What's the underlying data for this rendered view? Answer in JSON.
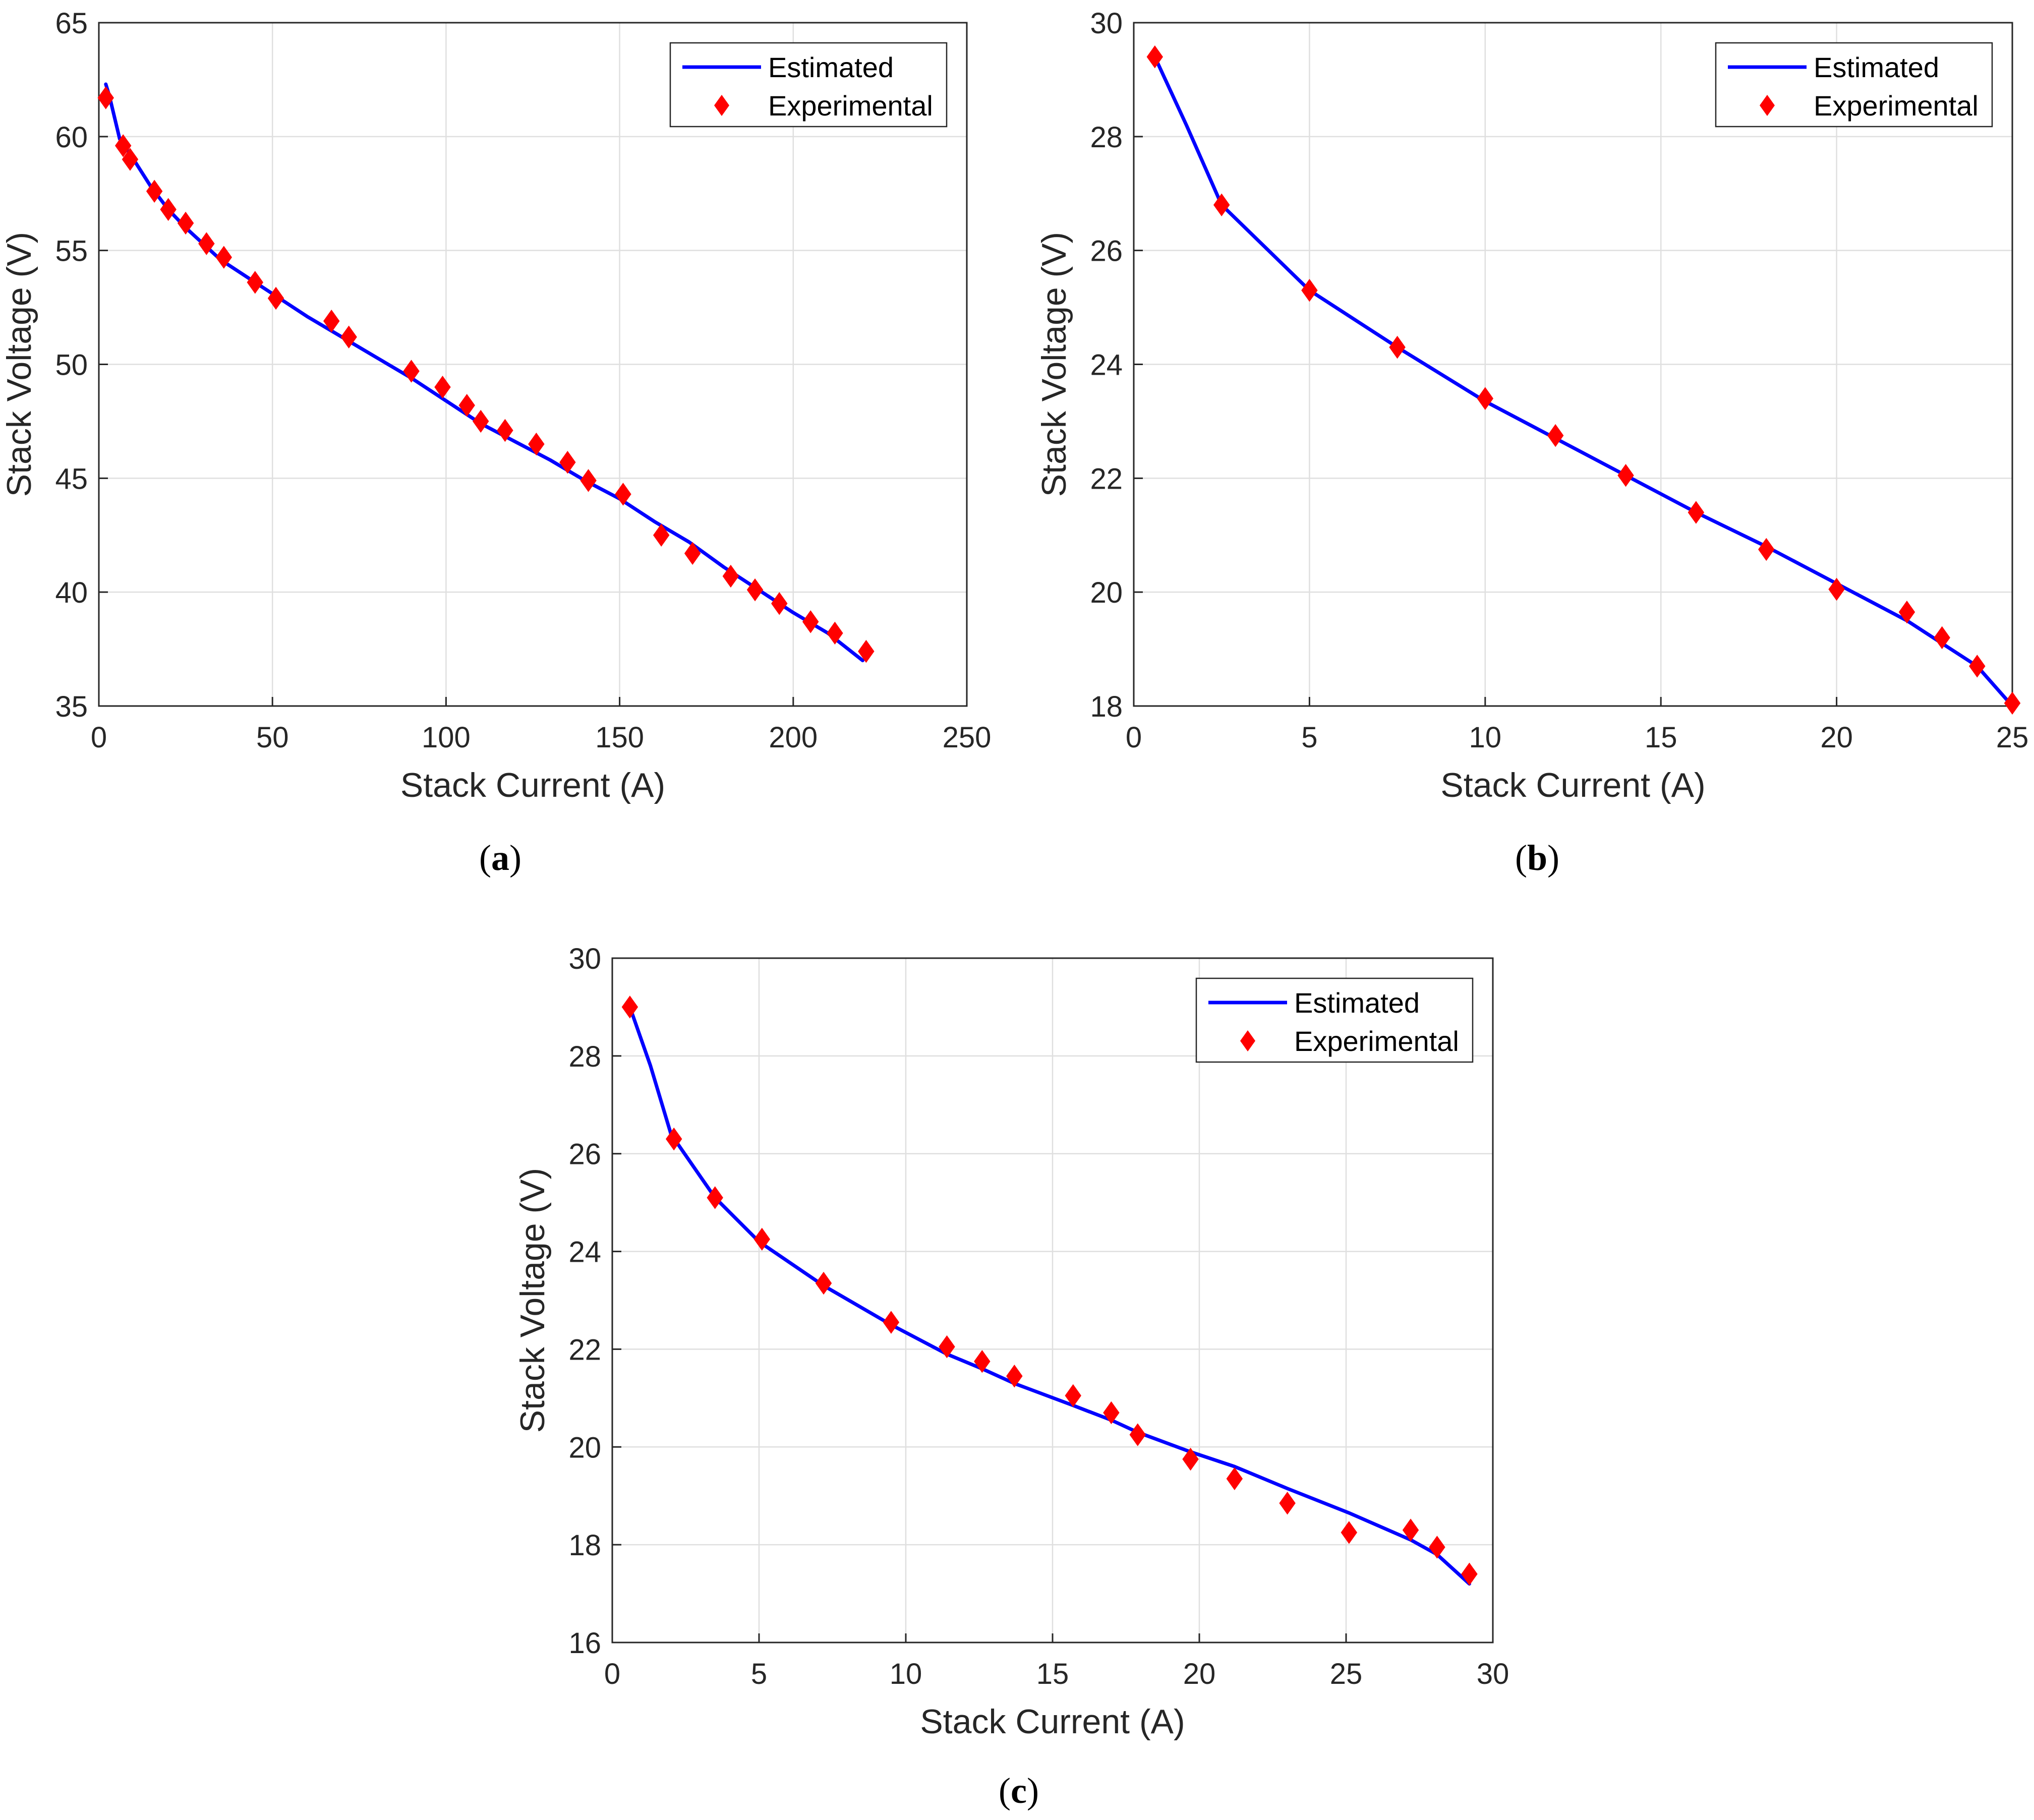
{
  "colors": {
    "estimated": "#0000ff",
    "experimental": "#ff0000",
    "grid": "#dfdfdf",
    "axis": "#262626"
  },
  "chart_data": [
    {
      "id": "a",
      "caption": "a",
      "type": "line",
      "xlabel": "Stack Current (A)",
      "ylabel": "Stack Voltage (V)",
      "xlim": [
        0,
        250
      ],
      "ylim": [
        35,
        65
      ],
      "xticks": [
        0,
        50,
        100,
        150,
        200,
        250
      ],
      "yticks": [
        35,
        40,
        45,
        50,
        55,
        60,
        65
      ],
      "grid": true,
      "legend_position": "top-right",
      "series": [
        {
          "name": "Estimated",
          "style": "line",
          "x": [
            2,
            3,
            6,
            10,
            15,
            20,
            25,
            30,
            35,
            45,
            52,
            60,
            70,
            80,
            90,
            100,
            110,
            120,
            130,
            140,
            150,
            160,
            170,
            180,
            190,
            200,
            210,
            220
          ],
          "y": [
            62.3,
            61.8,
            59.9,
            59.0,
            57.8,
            56.8,
            56.0,
            55.3,
            54.6,
            53.6,
            52.9,
            52.1,
            51.2,
            50.3,
            49.4,
            48.4,
            47.4,
            46.6,
            45.8,
            44.9,
            44.1,
            43.1,
            42.2,
            41.1,
            40.1,
            39.1,
            38.2,
            37.0
          ]
        },
        {
          "name": "Experimental",
          "style": "marker",
          "x": [
            2,
            7,
            9,
            16,
            20,
            25,
            31,
            36,
            45,
            51,
            67,
            72,
            90,
            99,
            106,
            110,
            117,
            126,
            135,
            141,
            151,
            162,
            171,
            182,
            189,
            196,
            205,
            212,
            221
          ],
          "y": [
            61.7,
            59.6,
            59.0,
            57.6,
            56.8,
            56.2,
            55.3,
            54.7,
            53.6,
            52.9,
            51.9,
            51.2,
            49.7,
            49.0,
            48.2,
            47.5,
            47.1,
            46.5,
            45.7,
            44.9,
            44.3,
            42.5,
            41.7,
            40.7,
            40.1,
            39.5,
            38.7,
            38.2,
            37.4
          ]
        }
      ]
    },
    {
      "id": "b",
      "caption": "b",
      "type": "line",
      "xlabel": "Stack Current (A)",
      "ylabel": "Stack Voltage (V)",
      "xlim": [
        0,
        25
      ],
      "ylim": [
        18,
        30
      ],
      "xticks": [
        0,
        5,
        10,
        15,
        20,
        25
      ],
      "yticks": [
        18,
        20,
        22,
        24,
        26,
        28,
        30
      ],
      "grid": true,
      "legend_position": "top-right",
      "series": [
        {
          "name": "Estimated",
          "style": "line",
          "x": [
            0.6,
            1.5,
            2.5,
            5,
            7.5,
            10,
            12,
            14,
            16,
            18,
            20,
            22,
            23,
            24,
            25
          ],
          "y": [
            29.4,
            28.2,
            26.8,
            25.3,
            24.3,
            23.35,
            22.7,
            22.05,
            21.4,
            20.8,
            20.15,
            19.5,
            19.1,
            18.7,
            18.0
          ]
        },
        {
          "name": "Experimental",
          "style": "marker",
          "x": [
            0.6,
            2.5,
            5,
            7.5,
            10,
            12,
            14,
            16,
            18,
            20,
            22,
            23,
            24,
            25
          ],
          "y": [
            29.4,
            26.8,
            25.3,
            24.3,
            23.4,
            22.75,
            22.05,
            21.4,
            20.75,
            20.05,
            19.65,
            19.2,
            18.7,
            18.05
          ]
        }
      ]
    },
    {
      "id": "c",
      "caption": "c",
      "type": "line",
      "xlabel": "Stack Current (A)",
      "ylabel": "Stack Voltage (V)",
      "xlim": [
        0,
        30
      ],
      "ylim": [
        16,
        30
      ],
      "xticks": [
        0,
        5,
        10,
        15,
        20,
        25,
        30
      ],
      "yticks": [
        16,
        18,
        20,
        22,
        24,
        26,
        28,
        30
      ],
      "grid": true,
      "legend_position": "top-right",
      "series": [
        {
          "name": "Estimated",
          "style": "line",
          "x": [
            0.6,
            1.3,
            2.0,
            3.5,
            5.0,
            7.2,
            9.5,
            11.4,
            12.6,
            13.7,
            15.7,
            17.0,
            17.9,
            19.7,
            21.2,
            23.0,
            25.1,
            27.2,
            28.1,
            29.2
          ],
          "y": [
            29.0,
            27.8,
            26.4,
            25.1,
            24.2,
            23.3,
            22.5,
            21.9,
            21.6,
            21.3,
            20.85,
            20.55,
            20.3,
            19.9,
            19.6,
            19.15,
            18.65,
            18.1,
            17.8,
            17.2
          ]
        },
        {
          "name": "Experimental",
          "style": "marker",
          "x": [
            0.6,
            2.1,
            3.5,
            5.1,
            7.2,
            9.5,
            11.4,
            12.6,
            13.7,
            15.7,
            17.0,
            17.9,
            19.7,
            21.2,
            23.0,
            25.1,
            27.2,
            28.1,
            29.2
          ],
          "y": [
            29.0,
            26.3,
            25.1,
            24.25,
            23.35,
            22.55,
            22.05,
            21.75,
            21.45,
            21.05,
            20.7,
            20.25,
            19.75,
            19.35,
            18.85,
            18.25,
            18.3,
            17.95,
            17.4
          ]
        }
      ]
    }
  ]
}
